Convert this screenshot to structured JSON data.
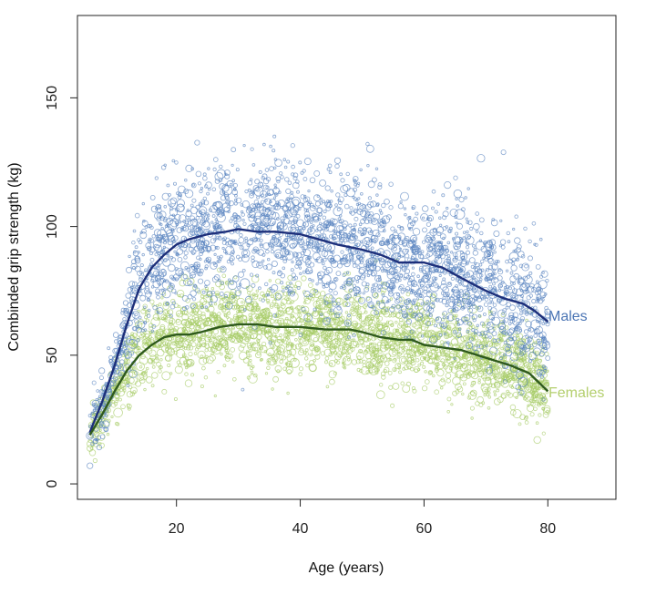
{
  "chart_data": {
    "type": "scatter",
    "xlabel": "Age (years)",
    "ylabel": "Combinded grip strength (kg)",
    "xlim": [
      4,
      91
    ],
    "ylim": [
      -6,
      182
    ],
    "xticks": [
      20,
      40,
      60,
      80
    ],
    "yticks": [
      0,
      50,
      100,
      150
    ],
    "grid": false,
    "series": [
      {
        "name": "Males",
        "color": "#4a74b4",
        "point_color": "#5a84c0",
        "line_color": "#1d2f7a",
        "scatter_center_samples": [
          [
            6,
            22
          ],
          [
            8,
            30
          ],
          [
            10,
            45
          ],
          [
            12,
            62
          ],
          [
            14,
            78
          ],
          [
            16,
            86
          ],
          [
            18,
            93
          ],
          [
            20,
            95
          ],
          [
            25,
            98
          ],
          [
            30,
            99
          ],
          [
            35,
            99
          ],
          [
            40,
            97
          ],
          [
            45,
            94
          ],
          [
            50,
            92
          ],
          [
            55,
            88
          ],
          [
            60,
            86
          ],
          [
            65,
            81
          ],
          [
            70,
            76
          ],
          [
            75,
            71
          ],
          [
            80,
            64
          ]
        ],
        "trend": {
          "x": [
            6,
            8,
            10,
            12,
            14,
            16,
            18,
            20,
            22,
            25,
            28,
            30,
            33,
            36,
            40,
            43,
            46,
            50,
            53,
            56,
            60,
            63,
            66,
            70,
            73,
            76,
            78,
            80
          ],
          "y": [
            20,
            32,
            46,
            62,
            76,
            84,
            89,
            93,
            95,
            97,
            98,
            99,
            98,
            98,
            97,
            95,
            93,
            91,
            89,
            86,
            86,
            84,
            80,
            75,
            72,
            70,
            67,
            63
          ]
        }
      },
      {
        "name": "Females",
        "color": "#b4cf6e",
        "point_color": "#a6cc66",
        "line_color": "#2f5a1c",
        "scatter_center_samples": [
          [
            6,
            19
          ],
          [
            8,
            26
          ],
          [
            10,
            36
          ],
          [
            12,
            45
          ],
          [
            14,
            51
          ],
          [
            16,
            55
          ],
          [
            18,
            57
          ],
          [
            20,
            58
          ],
          [
            25,
            61
          ],
          [
            30,
            62
          ],
          [
            35,
            61
          ],
          [
            40,
            60
          ],
          [
            45,
            60
          ],
          [
            50,
            59
          ],
          [
            55,
            57
          ],
          [
            60,
            55
          ],
          [
            65,
            52
          ],
          [
            70,
            48
          ],
          [
            75,
            44
          ],
          [
            80,
            37
          ]
        ],
        "trend": {
          "x": [
            6,
            8,
            10,
            12,
            14,
            16,
            18,
            20,
            22,
            24,
            27,
            30,
            33,
            36,
            40,
            44,
            48,
            50,
            53,
            56,
            58,
            60,
            63,
            66,
            70,
            74,
            77,
            80
          ],
          "y": [
            19,
            27,
            36,
            44,
            50,
            54,
            57,
            58,
            58,
            59,
            61,
            62,
            62,
            61,
            61,
            60,
            60,
            59,
            57,
            56,
            56,
            54,
            53,
            52,
            49,
            46,
            43,
            36
          ]
        }
      }
    ]
  }
}
